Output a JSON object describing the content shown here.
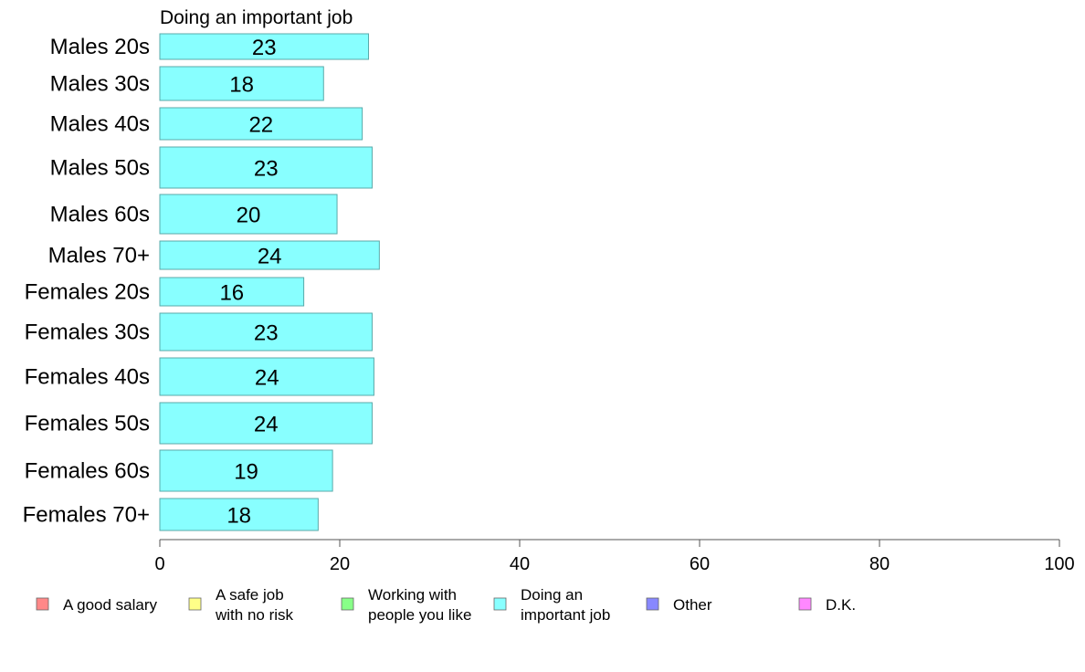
{
  "chart_data": {
    "type": "bar",
    "orientation": "horizontal",
    "title": "Doing an important job",
    "categories": [
      "Males 20s",
      "Males 30s",
      "Males 40s",
      "Males 50s",
      "Males 60s",
      "Males 70+",
      "Females 20s",
      "Females 30s",
      "Females 40s",
      "Females 50s",
      "Females 60s",
      "Females 70+"
    ],
    "values": [
      23,
      18,
      22,
      23,
      20,
      24,
      16,
      23,
      24,
      24,
      19,
      18
    ],
    "bar_values": [
      23.2,
      18.2,
      22.5,
      23.6,
      19.7,
      24.4,
      16.0,
      23.6,
      23.8,
      23.6,
      19.2,
      17.6
    ],
    "xlim": [
      0,
      100
    ],
    "xticks": [
      0,
      20,
      40,
      60,
      80,
      100
    ],
    "grid": false,
    "bar_color": "#88ffff",
    "bar_border_color": "#5aa9a9",
    "legend_position": "bottom",
    "legend": [
      {
        "lines": [
          "A good salary"
        ],
        "color": "#ff8888"
      },
      {
        "lines": [
          "A safe job",
          "with no risk"
        ],
        "color": "#ffff88"
      },
      {
        "lines": [
          "Working with",
          "people you like"
        ],
        "color": "#88ff88"
      },
      {
        "lines": [
          "Doing an",
          "important job"
        ],
        "color": "#88ffff"
      },
      {
        "lines": [
          "Other"
        ],
        "color": "#8888ff"
      },
      {
        "lines": [
          "D.K."
        ],
        "color": "#ff88ff"
      }
    ]
  }
}
